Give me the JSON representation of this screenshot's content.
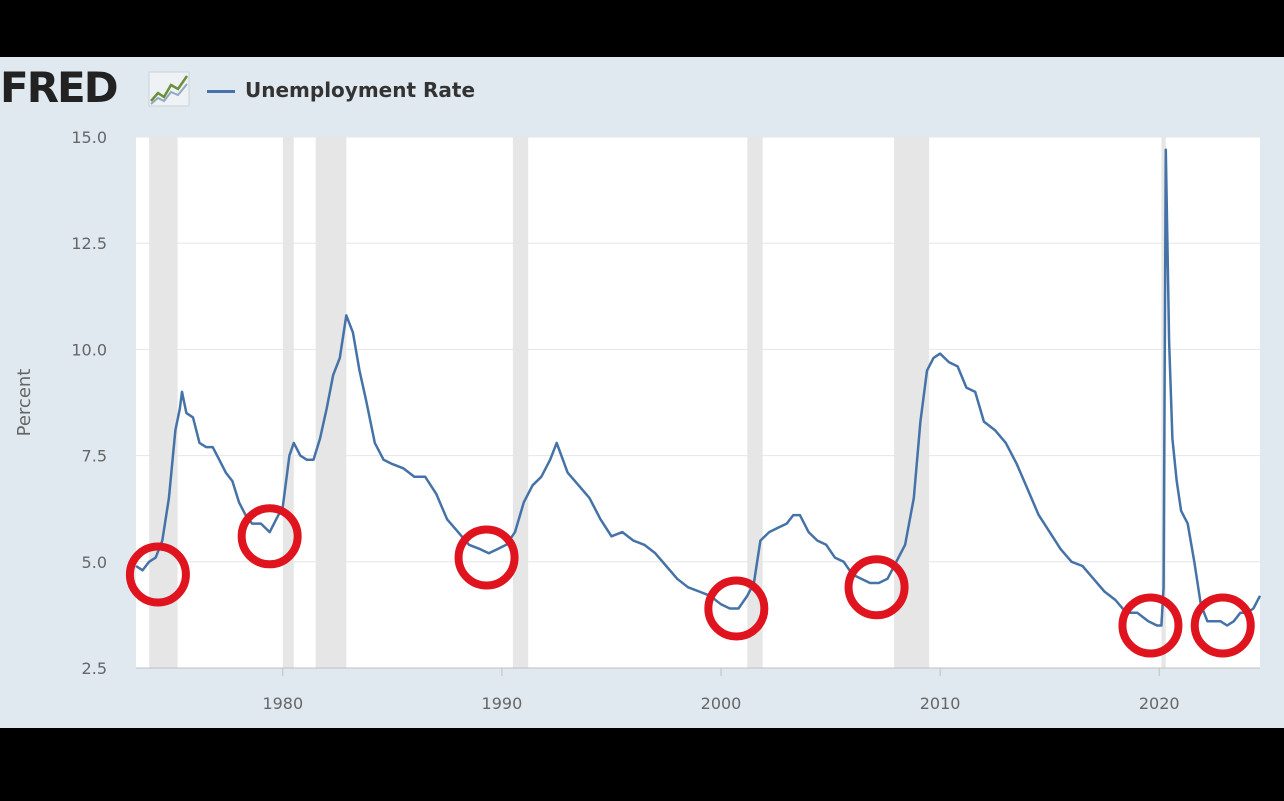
{
  "header": {
    "logo_text": "FRED",
    "legend_label": "Unemployment Rate"
  },
  "colors": {
    "series": "#4572a7",
    "recession_band": "#e6e6e6",
    "plot_background": "#ffffff",
    "page_background": "#e1e9f0",
    "circle_markers": "#e0141e"
  },
  "icons": {
    "logo_icon": "line-chart-icon"
  },
  "chart_data": {
    "type": "line",
    "title": "",
    "xlabel": "",
    "ylabel": "Percent",
    "xlim": [
      1973.3,
      2024.6
    ],
    "ylim": [
      2.5,
      15.0
    ],
    "y_ticks": [
      "2.5",
      "5.0",
      "7.5",
      "10.0",
      "12.5",
      "15.0"
    ],
    "x_ticks": [
      "1980",
      "1990",
      "2000",
      "2010",
      "2020"
    ],
    "grid": true,
    "legend_position": "top-left",
    "recessions": [
      [
        1973.9,
        1975.2
      ],
      [
        1980.0,
        1980.5
      ],
      [
        1981.5,
        1982.9
      ],
      [
        1990.5,
        1991.2
      ],
      [
        2001.2,
        2001.9
      ],
      [
        2007.9,
        2009.5
      ],
      [
        2020.1,
        2020.3
      ]
    ],
    "series": [
      {
        "name": "Unemployment Rate",
        "x": [
          1973.3,
          1973.6,
          1973.9,
          1974.2,
          1974.5,
          1974.8,
          1975.1,
          1975.3,
          1975.4,
          1975.6,
          1975.9,
          1976.2,
          1976.5,
          1976.8,
          1977.1,
          1977.4,
          1977.7,
          1978.0,
          1978.3,
          1978.6,
          1979.0,
          1979.4,
          1979.7,
          1980.0,
          1980.3,
          1980.5,
          1980.8,
          1981.1,
          1981.4,
          1981.7,
          1982.0,
          1982.3,
          1982.6,
          1982.9,
          1983.2,
          1983.5,
          1983.8,
          1984.2,
          1984.6,
          1985.0,
          1985.5,
          1986.0,
          1986.5,
          1987.0,
          1987.5,
          1988.0,
          1988.5,
          1989.0,
          1989.4,
          1989.8,
          1990.2,
          1990.6,
          1991.0,
          1991.4,
          1991.8,
          1992.2,
          1992.5,
          1993.0,
          1993.5,
          1994.0,
          1994.5,
          1995.0,
          1995.5,
          1996.0,
          1996.5,
          1997.0,
          1997.5,
          1998.0,
          1998.5,
          1999.0,
          1999.5,
          2000.0,
          2000.4,
          2000.8,
          2001.2,
          2001.5,
          2001.8,
          2002.2,
          2002.6,
          2003.0,
          2003.3,
          2003.6,
          2004.0,
          2004.4,
          2004.8,
          2005.2,
          2005.6,
          2006.0,
          2006.4,
          2006.8,
          2007.2,
          2007.6,
          2008.0,
          2008.4,
          2008.8,
          2009.1,
          2009.4,
          2009.7,
          2010.0,
          2010.4,
          2010.8,
          2011.2,
          2011.6,
          2012.0,
          2012.5,
          2013.0,
          2013.5,
          2014.0,
          2014.5,
          2015.0,
          2015.5,
          2016.0,
          2016.5,
          2017.0,
          2017.5,
          2018.0,
          2018.5,
          2019.0,
          2019.5,
          2019.9,
          2020.1,
          2020.2,
          2020.3,
          2020.45,
          2020.6,
          2020.8,
          2021.0,
          2021.3,
          2021.6,
          2021.9,
          2022.2,
          2022.5,
          2022.8,
          2023.1,
          2023.4,
          2023.7,
          2024.0,
          2024.3,
          2024.6
        ],
        "values": [
          4.9,
          4.8,
          5.0,
          5.1,
          5.5,
          6.5,
          8.1,
          8.6,
          9.0,
          8.5,
          8.4,
          7.8,
          7.7,
          7.7,
          7.4,
          7.1,
          6.9,
          6.4,
          6.1,
          5.9,
          5.9,
          5.7,
          6.0,
          6.3,
          7.5,
          7.8,
          7.5,
          7.4,
          7.4,
          7.9,
          8.6,
          9.4,
          9.8,
          10.8,
          10.4,
          9.5,
          8.8,
          7.8,
          7.4,
          7.3,
          7.2,
          7.0,
          7.0,
          6.6,
          6.0,
          5.7,
          5.4,
          5.3,
          5.2,
          5.3,
          5.4,
          5.7,
          6.4,
          6.8,
          7.0,
          7.4,
          7.8,
          7.1,
          6.8,
          6.5,
          6.0,
          5.6,
          5.7,
          5.5,
          5.4,
          5.2,
          4.9,
          4.6,
          4.4,
          4.3,
          4.2,
          4.0,
          3.9,
          3.9,
          4.2,
          4.5,
          5.5,
          5.7,
          5.8,
          5.9,
          6.1,
          6.1,
          5.7,
          5.5,
          5.4,
          5.1,
          5.0,
          4.7,
          4.6,
          4.5,
          4.5,
          4.6,
          5.0,
          5.4,
          6.5,
          8.3,
          9.5,
          9.8,
          9.9,
          9.7,
          9.6,
          9.1,
          9.0,
          8.3,
          8.1,
          7.8,
          7.3,
          6.7,
          6.1,
          5.7,
          5.3,
          5.0,
          4.9,
          4.6,
          4.3,
          4.1,
          3.8,
          3.8,
          3.6,
          3.5,
          3.5,
          4.4,
          14.7,
          10.2,
          7.9,
          6.9,
          6.2,
          5.9,
          5.0,
          4.0,
          3.6,
          3.6,
          3.6,
          3.5,
          3.6,
          3.8,
          3.8,
          3.9,
          4.2
        ]
      }
    ],
    "annotations": {
      "circles": [
        {
          "x": 1974.3,
          "y": 4.7
        },
        {
          "x": 1979.4,
          "y": 5.6
        },
        {
          "x": 1989.3,
          "y": 5.1
        },
        {
          "x": 2000.7,
          "y": 3.9
        },
        {
          "x": 2007.1,
          "y": 4.4
        },
        {
          "x": 2019.6,
          "y": 3.5
        },
        {
          "x": 2022.9,
          "y": 3.5
        }
      ]
    }
  }
}
